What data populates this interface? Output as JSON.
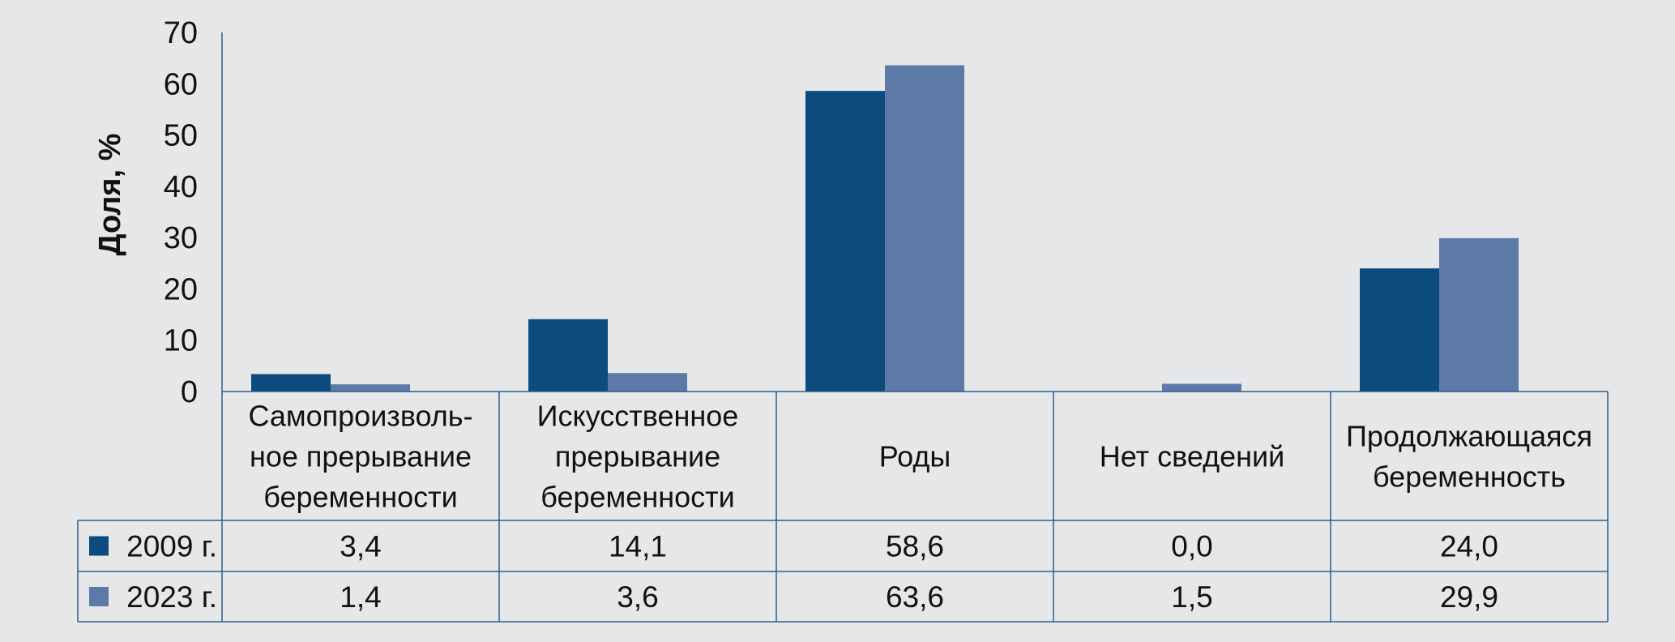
{
  "chart_data": {
    "type": "bar",
    "ylabel": "Доля, %",
    "ylim": [
      0,
      70
    ],
    "yticks": [
      "0",
      "10",
      "20",
      "30",
      "40",
      "50",
      "60",
      "70"
    ],
    "categories": [
      [
        "Самопроизволь-",
        "ное прерывание",
        "беременности"
      ],
      [
        "Искусственное",
        "прерывание",
        "беременности"
      ],
      [
        "Роды"
      ],
      [
        "Нет сведений"
      ],
      [
        "Продолжающаяся",
        "беременность"
      ]
    ],
    "series": [
      {
        "name": "2009 г.",
        "color": "#0d4a7e",
        "values": [
          3.4,
          14.1,
          58.6,
          0.0,
          24.0
        ],
        "labels": [
          "3,4",
          "14,1",
          "58,6",
          "0,0",
          "24,0"
        ]
      },
      {
        "name": "2023 г.",
        "color": "#5d79a8",
        "values": [
          1.4,
          3.6,
          63.6,
          1.5,
          29.9
        ],
        "labels": [
          "1,4",
          "3,6",
          "63,6",
          "1,5",
          "29,9"
        ]
      }
    ]
  }
}
